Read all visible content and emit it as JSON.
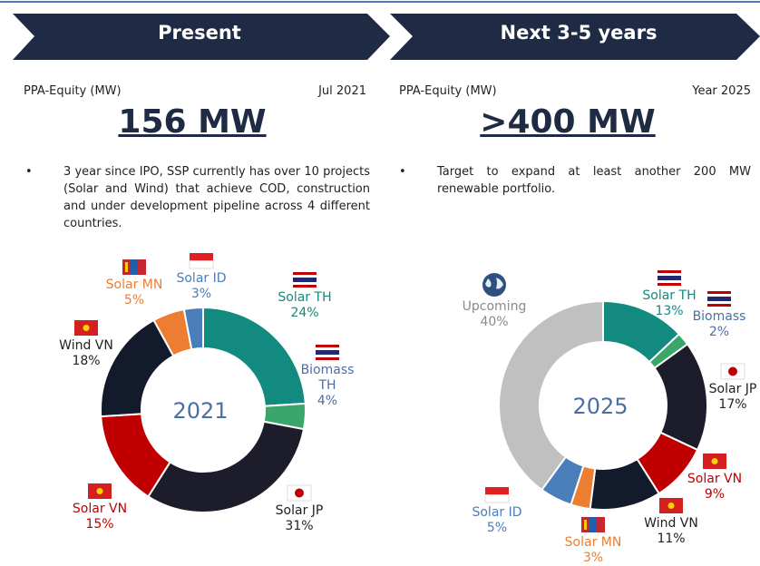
{
  "headers": [
    "Present",
    "Next 3-5 years"
  ],
  "panels": [
    {
      "label": "PPA-Equity (MW)",
      "date": "Jul 2021",
      "total": "156 MW",
      "bullet": "3 year since IPO, SSP currently has over 10 projects (Solar and Wind) that achieve COD, construction and under development pipeline across 4 different countries."
    },
    {
      "label": "PPA-Equity (MW)",
      "date": "Year 2025",
      "total": ">400 MW",
      "bullet": "Target to expand at least another 200 MW renewable portfolio."
    }
  ],
  "chart_data": [
    {
      "type": "pie",
      "center_label": "2021",
      "categories": [
        "Solar TH",
        "Biomass TH",
        "Solar JP",
        "Solar VN",
        "Wind VN",
        "Solar MN",
        "Solar ID"
      ],
      "values": [
        24,
        4,
        31,
        15,
        18,
        5,
        3
      ],
      "value_labels": [
        "24%",
        "4%",
        "31%",
        "15%",
        "18%",
        "5%",
        "3%"
      ],
      "colors": [
        "#128a7f",
        "#3aa66a",
        "#1c1c2a",
        "#c00000",
        "#131a2c",
        "#ed7d31",
        "#4a7ebb"
      ],
      "label_colors": [
        "#128a7f",
        "#4a6fa5",
        "#222222",
        "#c00000",
        "#222222",
        "#ed7d31",
        "#4a7ebb"
      ]
    },
    {
      "type": "pie",
      "center_label": "2025",
      "categories": [
        "Solar TH",
        "Biomass",
        "Solar JP",
        "Solar VN",
        "Wind VN",
        "Solar MN",
        "Solar ID",
        "Upcoming"
      ],
      "values": [
        13,
        2,
        17,
        9,
        11,
        3,
        5,
        40
      ],
      "value_labels": [
        "13%",
        "2%",
        "17%",
        "9%",
        "11%",
        "3%",
        "5%",
        "40%"
      ],
      "colors": [
        "#128a7f",
        "#3aa66a",
        "#1c1c2a",
        "#c00000",
        "#131a2c",
        "#ed7d31",
        "#4a7ebb",
        "#c0c0c0"
      ],
      "label_colors": [
        "#128a7f",
        "#4a6fa5",
        "#222222",
        "#c00000",
        "#222222",
        "#ed7d31",
        "#4a7ebb",
        "#8a8a8a"
      ]
    }
  ]
}
